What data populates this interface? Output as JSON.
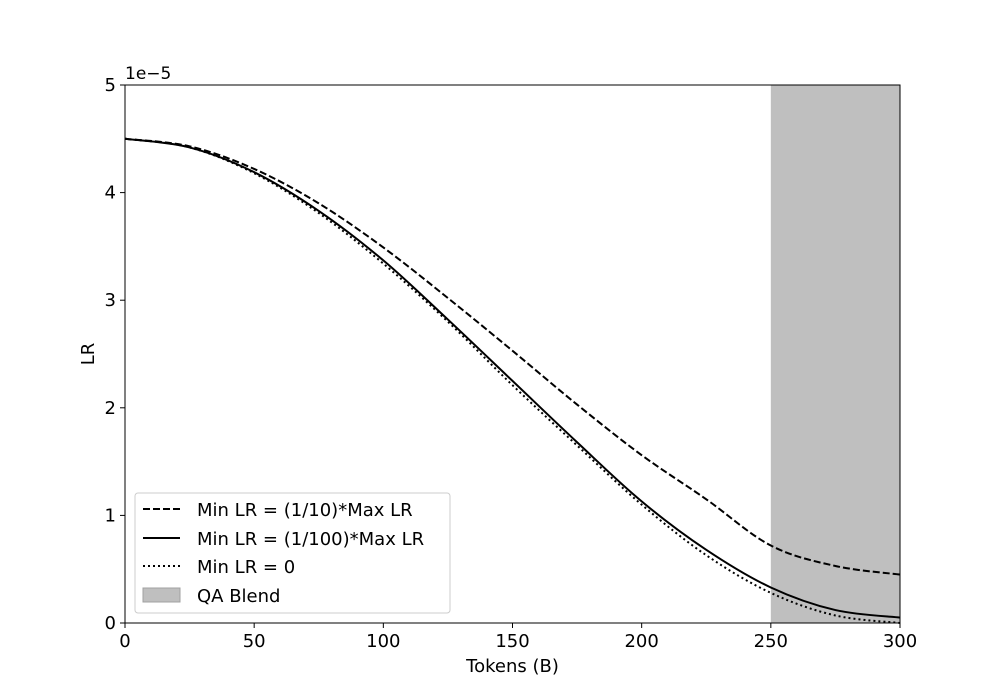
{
  "chart_data": {
    "type": "line",
    "title": "",
    "xlabel": "Tokens (B)",
    "ylabel": "LR",
    "y_scale_label": "1e−5",
    "xlim": [
      0,
      300
    ],
    "ylim": [
      0,
      5
    ],
    "x_ticks": [
      0,
      50,
      100,
      150,
      200,
      250,
      300
    ],
    "y_ticks": [
      0,
      1,
      2,
      3,
      4,
      5
    ],
    "grid": false,
    "legend_position": "lower-left",
    "shaded_region": {
      "name": "QA Blend",
      "x_start": 250,
      "x_end": 300,
      "color": "#bfbfbf"
    },
    "series": [
      {
        "name": "Min LR = (1/10)*Max LR",
        "style": "dashed",
        "x": [
          0,
          25,
          50,
          75,
          100,
          125,
          150,
          175,
          200,
          225,
          250,
          275,
          300
        ],
        "y": [
          4.5,
          4.43,
          4.22,
          3.9,
          3.49,
          3.02,
          2.53,
          2.03,
          1.56,
          1.15,
          0.72,
          0.53,
          0.45
        ]
      },
      {
        "name": "Min LR = (1/100)*Max LR",
        "style": "solid",
        "x": [
          0,
          25,
          50,
          75,
          100,
          125,
          150,
          175,
          200,
          225,
          250,
          275,
          300
        ],
        "y": [
          4.5,
          4.42,
          4.19,
          3.83,
          3.37,
          2.82,
          2.25,
          1.68,
          1.13,
          0.68,
          0.33,
          0.12,
          0.05
        ]
      },
      {
        "name": "Min LR = 0",
        "style": "dotted",
        "x": [
          0,
          25,
          50,
          75,
          100,
          125,
          150,
          175,
          200,
          225,
          250,
          275,
          300
        ],
        "y": [
          4.5,
          4.42,
          4.18,
          3.81,
          3.34,
          2.8,
          2.21,
          1.65,
          1.1,
          0.63,
          0.28,
          0.07,
          0.0
        ]
      }
    ]
  }
}
